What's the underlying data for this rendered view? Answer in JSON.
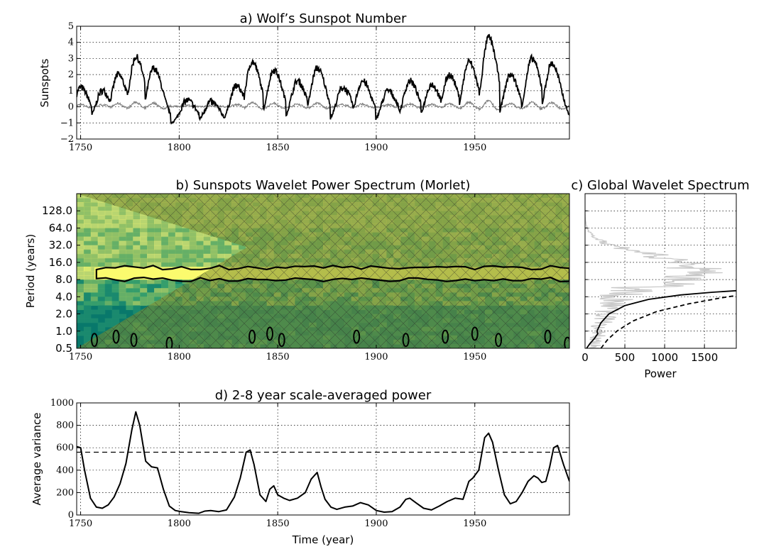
{
  "chart_data": [
    {
      "id": "a",
      "type": "line",
      "title": "a) Wolf’s Sunspot Number",
      "ylabel": "Sunspots",
      "xlim": [
        1748,
        1998
      ],
      "ylim": [
        -2,
        5
      ],
      "xticks": [
        1750,
        1800,
        1850,
        1900,
        1950
      ],
      "yticks": [
        -2,
        -1,
        0,
        1,
        2,
        3,
        4,
        5
      ],
      "grid": true,
      "cycle_peaks": [
        {
          "year": 1750,
          "value": 1.2
        },
        {
          "year": 1761,
          "value": 1.0
        },
        {
          "year": 1769,
          "value": 2.0
        },
        {
          "year": 1778,
          "value": 3.1
        },
        {
          "year": 1787,
          "value": 2.4
        },
        {
          "year": 1804,
          "value": 0.4
        },
        {
          "year": 1816,
          "value": 0.3
        },
        {
          "year": 1829,
          "value": 1.3
        },
        {
          "year": 1837,
          "value": 2.8
        },
        {
          "year": 1848,
          "value": 2.3
        },
        {
          "year": 1860,
          "value": 1.6
        },
        {
          "year": 1870,
          "value": 2.4
        },
        {
          "year": 1883,
          "value": 1.2
        },
        {
          "year": 1893,
          "value": 1.6
        },
        {
          "year": 1906,
          "value": 1.0
        },
        {
          "year": 1917,
          "value": 1.6
        },
        {
          "year": 1928,
          "value": 1.4
        },
        {
          "year": 1937,
          "value": 2.0
        },
        {
          "year": 1947,
          "value": 2.8
        },
        {
          "year": 1957,
          "value": 4.3
        },
        {
          "year": 1968,
          "value": 2.0
        },
        {
          "year": 1979,
          "value": 3.0
        },
        {
          "year": 1989,
          "value": 2.7
        }
      ],
      "series": [
        {
          "color": "#000000"
        },
        {
          "color": "#808080"
        }
      ]
    },
    {
      "id": "b",
      "type": "heatmap",
      "title": "b) Sunspots Wavelet Power Spectrum (Morlet)",
      "ylabel": "Period (years)",
      "xlim": [
        1748,
        1998
      ],
      "yscale": "log2",
      "ylim": [
        0.5,
        256
      ],
      "xticks": [
        1750,
        1800,
        1850,
        1900,
        1950
      ],
      "yticks": [
        "0.5",
        "1.0",
        "2.0",
        "4.0",
        "8.0",
        "16.0",
        "32.0",
        "64.0",
        "128.0"
      ],
      "colormap": [
        "#08786b",
        "#1d8c6e",
        "#3da36c",
        "#75b866",
        "#a8cc66",
        "#d8e571",
        "#fbfb6e"
      ],
      "cone_of_influence": "hatched",
      "significance_contour": {
        "color": "#000000",
        "main_band_years": [
          1758,
          1998
        ],
        "main_band_period": [
          8,
          13
        ]
      }
    },
    {
      "id": "c",
      "type": "line",
      "title": "c) Global Wavelet Spectrum",
      "xlabel": "Power",
      "xlim": [
        0,
        1900
      ],
      "xticks": [
        0,
        500,
        1000,
        1500
      ],
      "yscale": "log2",
      "ylim": [
        0.5,
        256
      ],
      "grid": true,
      "series": [
        {
          "color": "#000000",
          "style": "solid",
          "x": [
            20,
            60,
            120,
            160,
            150,
            200,
            300,
            500,
            800,
            1200,
            1600,
            1900
          ],
          "y": [
            0.5,
            0.6,
            0.75,
            0.9,
            1.0,
            1.4,
            2.0,
            2.8,
            3.6,
            4.3,
            4.8,
            5.1
          ]
        },
        {
          "color": "#000000",
          "style": "dashed",
          "x": [
            200,
            280,
            400,
            600,
            900,
            1300,
            1700,
            1900
          ],
          "y": [
            0.5,
            0.7,
            1.0,
            1.5,
            2.2,
            3.0,
            3.8,
            4.2
          ]
        },
        {
          "color": "#c8c8c8",
          "style": "solid",
          "peak_period": 11,
          "peak_power": 1900
        }
      ]
    },
    {
      "id": "d",
      "type": "line",
      "title": "d) 2-8 year scale-averaged power",
      "xlabel": "Time (year)",
      "ylabel": "Average variance",
      "xlim": [
        1748,
        1998
      ],
      "ylim": [
        0,
        1000
      ],
      "xticks": [
        1750,
        1800,
        1850,
        1900,
        1950
      ],
      "yticks": [
        0,
        200,
        400,
        600,
        800,
        1000
      ],
      "grid": true,
      "significance_level": 560,
      "series": [
        {
          "color": "#000000",
          "x": [
            1748,
            1750,
            1752,
            1755,
            1758,
            1761,
            1764,
            1767,
            1770,
            1773,
            1776,
            1778,
            1780,
            1783,
            1786,
            1789,
            1792,
            1795,
            1798,
            1801,
            1805,
            1810,
            1813,
            1816,
            1820,
            1824,
            1828,
            1831,
            1834,
            1836,
            1838,
            1841,
            1844,
            1846,
            1848,
            1850,
            1853,
            1856,
            1860,
            1864,
            1867,
            1870,
            1872,
            1874,
            1877,
            1880,
            1884,
            1888,
            1892,
            1896,
            1900,
            1904,
            1908,
            1912,
            1915,
            1917,
            1920,
            1924,
            1928,
            1932,
            1936,
            1940,
            1944,
            1947,
            1949,
            1952,
            1955,
            1957,
            1959,
            1962,
            1965,
            1968,
            1971,
            1974,
            1977,
            1980,
            1982,
            1984,
            1986,
            1988,
            1990,
            1992,
            1995,
            1998
          ],
          "y": [
            610,
            600,
            400,
            150,
            70,
            60,
            90,
            160,
            280,
            460,
            760,
            920,
            800,
            480,
            430,
            420,
            230,
            80,
            40,
            30,
            20,
            15,
            35,
            40,
            30,
            45,
            160,
            330,
            560,
            580,
            450,
            180,
            120,
            230,
            260,
            180,
            150,
            130,
            150,
            200,
            320,
            380,
            250,
            140,
            70,
            50,
            70,
            80,
            110,
            90,
            40,
            25,
            30,
            70,
            140,
            150,
            110,
            60,
            45,
            80,
            120,
            150,
            140,
            300,
            330,
            400,
            690,
            730,
            650,
            400,
            180,
            100,
            120,
            200,
            300,
            350,
            330,
            290,
            300,
            430,
            600,
            620,
            450,
            300
          ]
        }
      ]
    }
  ]
}
